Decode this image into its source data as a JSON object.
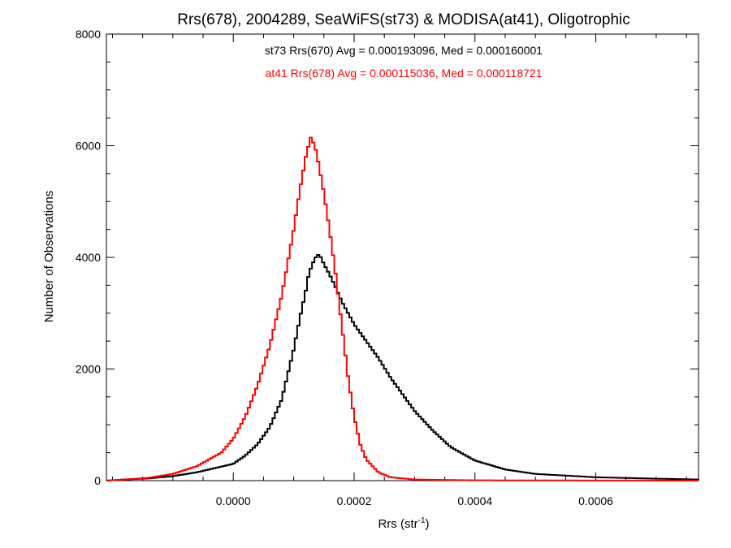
{
  "chart_data": {
    "type": "histogram",
    "title": "Rrs(678), 2004289, SeaWiFS(st73) & MODISA(at41), Oligotrophic",
    "xlabel_base": "Rrs (str",
    "xlabel_sup": "-1",
    "xlabel_close": ")",
    "ylabel": "Number of Observations",
    "xlim": [
      -0.00021,
      0.00077
    ],
    "ylim": [
      0,
      8000
    ],
    "xticks": [
      0.0,
      0.0002,
      0.0004,
      0.0006
    ],
    "xtick_labels": [
      "0.0000",
      "0.0002",
      "0.0004",
      "0.0006"
    ],
    "yticks": [
      0,
      2000,
      4000,
      6000,
      8000
    ],
    "ytick_labels": [
      "0",
      "2000",
      "4000",
      "6000",
      "8000"
    ],
    "bin_width": 4.1e-06,
    "colors": {
      "st73": "#000000",
      "at41": "#ff0000"
    },
    "series": [
      {
        "name": "st73",
        "legend_text": "st73 Rrs(670) Avg = 0.000193096, Med = 0.000160001",
        "color": "#000000",
        "points": [
          [
            -0.00021,
            0
          ],
          [
            -0.00018,
            20
          ],
          [
            -0.00014,
            40
          ],
          [
            -0.0001,
            80
          ],
          [
            -6e-05,
            150
          ],
          [
            -2e-05,
            250
          ],
          [
            0.0,
            300
          ],
          [
            2e-05,
            450
          ],
          [
            4e-05,
            650
          ],
          [
            6e-05,
            950
          ],
          [
            8e-05,
            1450
          ],
          [
            9e-05,
            1900
          ],
          [
            0.0001,
            2350
          ],
          [
            0.00011,
            2900
          ],
          [
            0.00012,
            3400
          ],
          [
            0.000125,
            3700
          ],
          [
            0.00013,
            3850
          ],
          [
            0.000135,
            3980
          ],
          [
            0.00014,
            4050
          ],
          [
            0.000145,
            4000
          ],
          [
            0.00015,
            3880
          ],
          [
            0.00016,
            3680
          ],
          [
            0.00017,
            3450
          ],
          [
            0.00018,
            3200
          ],
          [
            0.00019,
            3000
          ],
          [
            0.0002,
            2800
          ],
          [
            0.00022,
            2500
          ],
          [
            0.00024,
            2200
          ],
          [
            0.00026,
            1850
          ],
          [
            0.00028,
            1550
          ],
          [
            0.0003,
            1250
          ],
          [
            0.00033,
            900
          ],
          [
            0.00036,
            600
          ],
          [
            0.0004,
            360
          ],
          [
            0.00045,
            200
          ],
          [
            0.0005,
            120
          ],
          [
            0.0006,
            60
          ],
          [
            0.0007,
            35
          ],
          [
            0.00077,
            20
          ]
        ]
      },
      {
        "name": "at41",
        "legend_text": "at41 Rrs(678) Avg = 0.000115036, Med = 0.000118721",
        "color": "#ff0000",
        "points": [
          [
            -0.00021,
            0
          ],
          [
            -0.00018,
            20
          ],
          [
            -0.00014,
            50
          ],
          [
            -0.0001,
            120
          ],
          [
            -6e-05,
            260
          ],
          [
            -2e-05,
            500
          ],
          [
            0.0,
            750
          ],
          [
            2e-05,
            1150
          ],
          [
            4e-05,
            1700
          ],
          [
            6e-05,
            2400
          ],
          [
            8e-05,
            3300
          ],
          [
            9e-05,
            3900
          ],
          [
            0.0001,
            4500
          ],
          [
            0.00011,
            5200
          ],
          [
            0.00012,
            5800
          ],
          [
            0.000128,
            6150
          ],
          [
            0.000135,
            6000
          ],
          [
            0.00014,
            5750
          ],
          [
            0.00015,
            5150
          ],
          [
            0.00016,
            4450
          ],
          [
            0.00017,
            3650
          ],
          [
            0.00018,
            2750
          ],
          [
            0.00019,
            1850
          ],
          [
            0.0002,
            1150
          ],
          [
            0.00021,
            650
          ],
          [
            0.00022,
            380
          ],
          [
            0.00024,
            150
          ],
          [
            0.00026,
            60
          ],
          [
            0.0003,
            20
          ],
          [
            0.0004,
            5
          ],
          [
            0.00077,
            0
          ]
        ]
      }
    ]
  }
}
